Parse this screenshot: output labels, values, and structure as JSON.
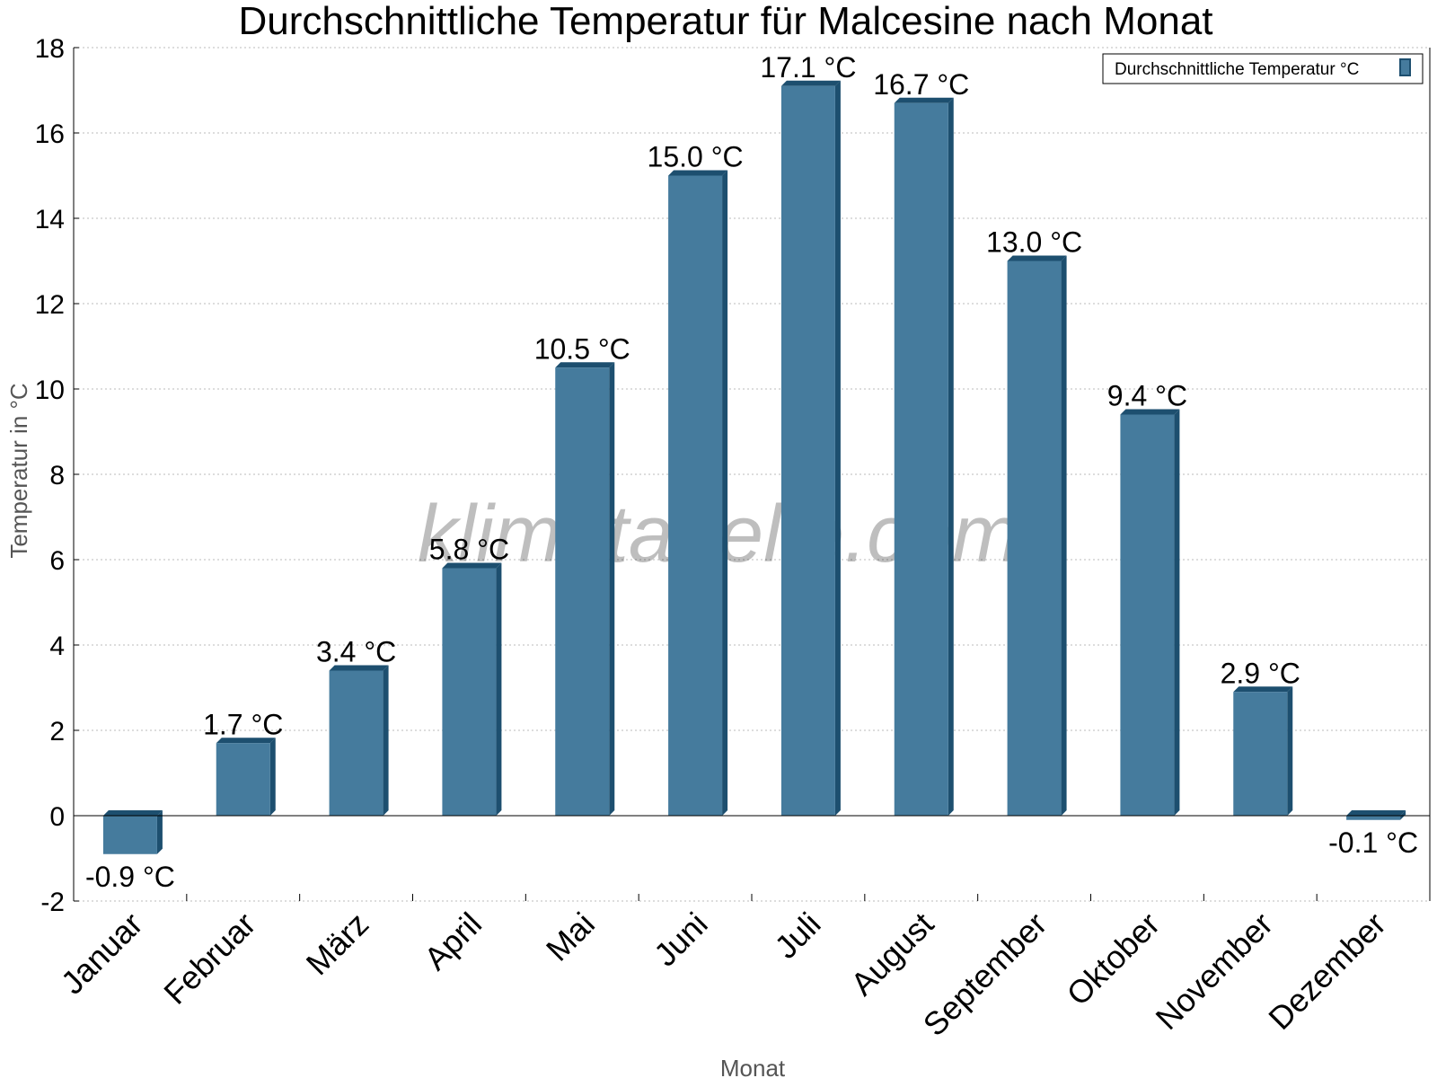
{
  "chart_data": {
    "type": "bar",
    "title": "Durchschnittliche Temperatur für Malcesine nach Monat",
    "xlabel": "Monat",
    "ylabel": "Temperatur in °C",
    "ylim": [
      -2,
      18
    ],
    "yticks": [
      -2,
      0,
      2,
      4,
      6,
      8,
      10,
      12,
      14,
      16,
      18
    ],
    "grid": true,
    "legend_position": "top-right",
    "categories": [
      "Januar",
      "Februar",
      "März",
      "April",
      "Mai",
      "Juni",
      "Juli",
      "August",
      "September",
      "Oktober",
      "November",
      "Dezember"
    ],
    "series": [
      {
        "name": "Durchschnittliche Temperatur °C",
        "values": [
          -0.9,
          1.7,
          3.4,
          5.8,
          10.5,
          15.0,
          17.1,
          16.7,
          13.0,
          9.4,
          2.9,
          -0.1
        ],
        "labels": [
          "-0.9 °C",
          "1.7 °C",
          "3.4 °C",
          "5.8 °C",
          "10.5 °C",
          "15.0 °C",
          "17.1 °C",
          "16.7 °C",
          "13.0 °C",
          "9.4 °C",
          "2.9 °C",
          "-0.1 °C"
        ],
        "color": "#457b9d",
        "side_color": "#1d4f6f"
      }
    ],
    "watermark": "klimatabelle.com"
  }
}
